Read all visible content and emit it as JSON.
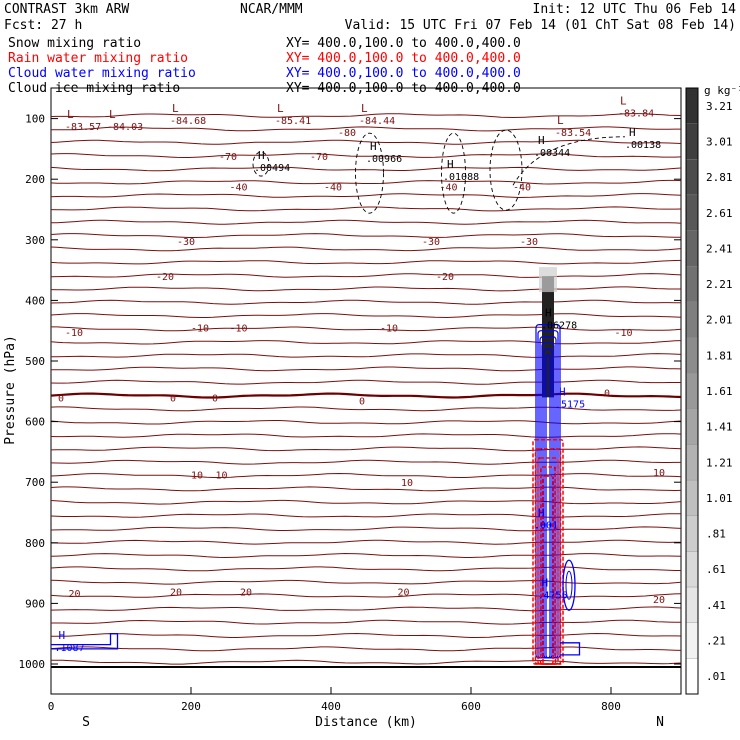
{
  "header": {
    "left_title": "CONTRAST  3km ARW",
    "center_title": "NCAR/MMM",
    "init": "Init: 12 UTC Thu 06 Feb 14",
    "fcst": "Fcst:   27 h",
    "valid": "Valid: 15 UTC Fri 07 Feb 14 (01 ChT Sat 08 Feb 14)"
  },
  "legend": [
    {
      "label": "Snow mixing ratio",
      "xy": "XY= 400.0,100.0 to 400.0,400.0",
      "color": "#000000"
    },
    {
      "label": "Rain water mixing ratio",
      "xy": "XY= 400.0,100.0 to 400.0,400.0",
      "color": "#ff0000"
    },
    {
      "label": "Cloud water mixing ratio",
      "xy": "XY= 400.0,100.0 to 400.0,400.0",
      "color": "#0000ff"
    },
    {
      "label": "Cloud ice mixing ratio",
      "xy": "XY= 400.0,100.0 to 400.0,400.0",
      "color": "#000000"
    }
  ],
  "colors": {
    "temperature_contour": "#7a1010",
    "zero_contour": "#6a0000",
    "rain": "#ff0000",
    "cloud_water": "#0000ff",
    "snow_ice": "#000000"
  },
  "chart_data": {
    "type": "cross-section contour",
    "xlabel": "Distance (km)",
    "ylabel": "Pressure (hPa)",
    "xlim": [
      0,
      900
    ],
    "ylim": [
      1040,
      50
    ],
    "x_ticks": [
      0,
      200,
      400,
      600,
      800
    ],
    "y_ticks": [
      100,
      200,
      300,
      400,
      500,
      600,
      700,
      800,
      900,
      1000
    ],
    "x_end_labels": {
      "left": "S",
      "right": "N"
    },
    "isotherm_labels_degC": [
      {
        "x": 20,
        "p": 112,
        "text": "-83.57",
        "marker": "L"
      },
      {
        "x": 80,
        "p": 112,
        "text": "-84.03",
        "marker": "L"
      },
      {
        "x": 170,
        "p": 102,
        "text": "-84.68",
        "marker": "L"
      },
      {
        "x": 320,
        "p": 102,
        "text": "-85.41",
        "marker": "L"
      },
      {
        "x": 410,
        "p": 122,
        "text": "-80",
        "marker": ""
      },
      {
        "x": 440,
        "p": 102,
        "text": "-84.44",
        "marker": "L"
      },
      {
        "x": 720,
        "p": 122,
        "text": "-83.54",
        "marker": "L"
      },
      {
        "x": 810,
        "p": 90,
        "text": "-83.84",
        "marker": "L"
      },
      {
        "x": 240,
        "p": 162,
        "text": "-70",
        "marker": ""
      },
      {
        "x": 370,
        "p": 162,
        "text": "-70",
        "marker": ""
      },
      {
        "x": 255,
        "p": 212,
        "text": "-40",
        "marker": ""
      },
      {
        "x": 390,
        "p": 212,
        "text": "-40",
        "marker": ""
      },
      {
        "x": 555,
        "p": 212,
        "text": "-40",
        "marker": ""
      },
      {
        "x": 660,
        "p": 212,
        "text": "-40",
        "marker": ""
      },
      {
        "x": 180,
        "p": 302,
        "text": "-30",
        "marker": ""
      },
      {
        "x": 530,
        "p": 302,
        "text": "-30",
        "marker": ""
      },
      {
        "x": 670,
        "p": 302,
        "text": "-30",
        "marker": ""
      },
      {
        "x": 150,
        "p": 360,
        "text": "-20",
        "marker": ""
      },
      {
        "x": 550,
        "p": 360,
        "text": "-20",
        "marker": ""
      },
      {
        "x": 20,
        "p": 452,
        "text": "-10",
        "marker": ""
      },
      {
        "x": 200,
        "p": 445,
        "text": "-10",
        "marker": ""
      },
      {
        "x": 255,
        "p": 445,
        "text": "-10",
        "marker": ""
      },
      {
        "x": 470,
        "p": 445,
        "text": "-10",
        "marker": ""
      },
      {
        "x": 805,
        "p": 452,
        "text": "-10",
        "marker": ""
      },
      {
        "x": 10,
        "p": 560,
        "text": "0",
        "marker": ""
      },
      {
        "x": 170,
        "p": 560,
        "text": "0",
        "marker": ""
      },
      {
        "x": 230,
        "p": 560,
        "text": "0",
        "marker": ""
      },
      {
        "x": 440,
        "p": 565,
        "text": "0",
        "marker": ""
      },
      {
        "x": 790,
        "p": 552,
        "text": "0",
        "marker": ""
      },
      {
        "x": 200,
        "p": 687,
        "text": "10",
        "marker": ""
      },
      {
        "x": 235,
        "p": 687,
        "text": "10",
        "marker": ""
      },
      {
        "x": 500,
        "p": 700,
        "text": "10",
        "marker": ""
      },
      {
        "x": 860,
        "p": 683,
        "text": "10",
        "marker": ""
      },
      {
        "x": 25,
        "p": 883,
        "text": "20",
        "marker": ""
      },
      {
        "x": 170,
        "p": 880,
        "text": "20",
        "marker": ""
      },
      {
        "x": 270,
        "p": 880,
        "text": "20",
        "marker": ""
      },
      {
        "x": 495,
        "p": 880,
        "text": "20",
        "marker": ""
      },
      {
        "x": 860,
        "p": 893,
        "text": "20",
        "marker": ""
      }
    ],
    "maxima_labels": [
      {
        "x": 290,
        "p": 180,
        "text": ".00494",
        "color": "#000000"
      },
      {
        "x": 450,
        "p": 165,
        "text": ".00966",
        "color": "#000000"
      },
      {
        "x": 560,
        "p": 195,
        "text": ".01088",
        "color": "#000000"
      },
      {
        "x": 690,
        "p": 155,
        "text": ".00344",
        "color": "#000000"
      },
      {
        "x": 820,
        "p": 142,
        "text": ".00138",
        "color": "#000000"
      },
      {
        "x": 700,
        "p": 440,
        "text": ".06278",
        "color": "#000000"
      },
      {
        "x": 720,
        "p": 570,
        "text": ".5175",
        "color": "#0000ff"
      },
      {
        "x": 690,
        "p": 770,
        "text": ".001",
        "color": "#0000ff"
      },
      {
        "x": 695,
        "p": 885,
        "text": ".4755",
        "color": "#0000ff"
      },
      {
        "x": 5,
        "p": 972,
        "text": ".1087",
        "color": "#0000ff"
      }
    ],
    "colorbar": {
      "units": "g kg⁻¹",
      "labels": [
        "3.21",
        "3.01",
        "2.81",
        "2.61",
        "2.41",
        "2.21",
        "2.01",
        "1.81",
        "1.61",
        "1.41",
        "1.21",
        "1.01",
        ".81",
        ".61",
        ".41",
        ".21",
        ".01"
      ]
    },
    "convective_column": {
      "x": 710,
      "p_top": 360,
      "p_bottom": 1000
    }
  }
}
